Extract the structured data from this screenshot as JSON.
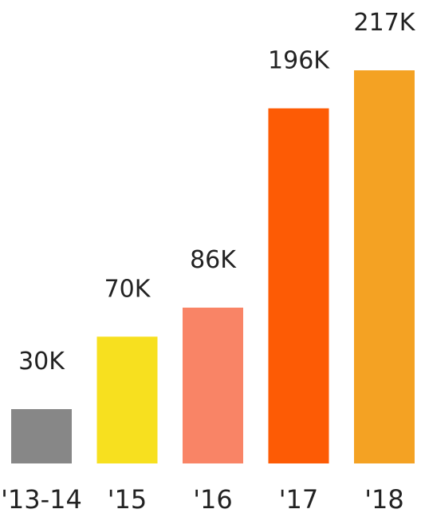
{
  "chart_data": {
    "type": "bar",
    "title": "",
    "xlabel": "",
    "ylabel": "",
    "categories": [
      "'13-14",
      "'15",
      "'16",
      "'17",
      "'18"
    ],
    "values": [
      30,
      70,
      86,
      196,
      217
    ],
    "value_labels": [
      "30K",
      "70K",
      "86K",
      "196K",
      "217K"
    ],
    "unit": "K",
    "ylim": [
      0,
      217
    ],
    "grid": false,
    "legend": "none",
    "colors": [
      "#878787",
      "#f7e01f",
      "#f98466",
      "#fd5b05",
      "#f4a223"
    ]
  }
}
